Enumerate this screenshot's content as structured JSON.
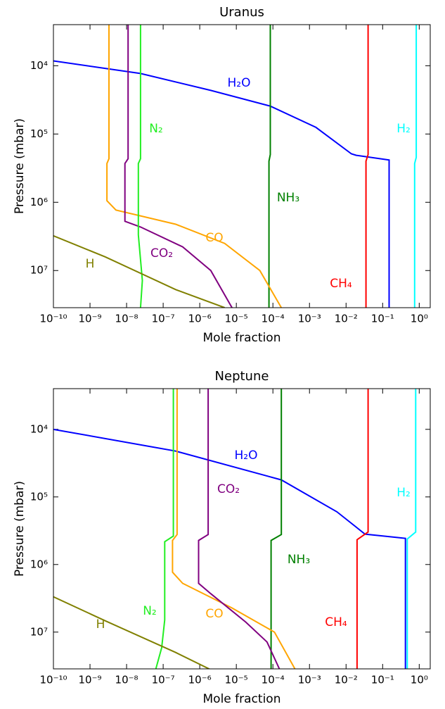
{
  "chart_data": [
    {
      "type": "line",
      "title": "Uranus",
      "xlabel": "Mole fraction",
      "ylabel": "Pressure (mbar)",
      "log_x": true,
      "log_y": true,
      "xlim": [
        1e-10,
        2
      ],
      "ylim": [
        35000000,
        2500
      ],
      "xticks": [
        {
          "value": 1e-10,
          "label": "10⁻¹⁰"
        },
        {
          "value": 1e-09,
          "label": "10⁻⁹"
        },
        {
          "value": 1e-08,
          "label": "10⁻⁸"
        },
        {
          "value": 1e-07,
          "label": "10⁻⁷"
        },
        {
          "value": 1e-06,
          "label": "10⁻⁶"
        },
        {
          "value": 1e-05,
          "label": "10⁻⁵"
        },
        {
          "value": 0.0001,
          "label": "10⁻⁴"
        },
        {
          "value": 0.001,
          "label": "10⁻³"
        },
        {
          "value": 0.01,
          "label": "10⁻²"
        },
        {
          "value": 0.1,
          "label": "10⁻¹"
        },
        {
          "value": 1,
          "label": "10⁰"
        }
      ],
      "yticks": [
        {
          "value": 10000,
          "label": "10⁴"
        },
        {
          "value": 100000,
          "label": "10⁵"
        },
        {
          "value": 1000000,
          "label": "10⁶"
        },
        {
          "value": 10000000,
          "label": "10⁷"
        }
      ],
      "series": [
        {
          "name": "H₂O",
          "color": "#0000ff",
          "x": [
            1e-10,
            2.4e-08,
            2e-06,
            8.5e-05,
            0.0015,
            0.014,
            0.019,
            0.15,
            0.15
          ],
          "values": [
            8500,
            13000,
            23000,
            39000,
            80000,
            195000,
            205000,
            240000,
            35000000
          ]
        },
        {
          "name": "CH₄",
          "color": "#ff0000",
          "x": [
            0.04,
            0.04,
            0.035,
            0.035
          ],
          "values": [
            2500,
            200000,
            250000,
            35000000
          ]
        },
        {
          "name": "H₂",
          "color": "#00ffff",
          "x": [
            0.83,
            0.83,
            0.75,
            0.75
          ],
          "values": [
            2500,
            220000,
            270000,
            35000000
          ]
        },
        {
          "name": "NH₃",
          "color": "#008000",
          "x": [
            8.5e-05,
            8.5e-05,
            7.8e-05,
            7.8e-05
          ],
          "values": [
            2500,
            200000,
            250000,
            35000000
          ]
        },
        {
          "name": "CO",
          "color": "#ffa500",
          "x": [
            3.3e-09,
            3.3e-09,
            2.9e-09,
            2.9e-09,
            5.1e-09,
            2.2e-07,
            4.8e-06,
            4.4e-05,
            0.00017
          ],
          "values": [
            2500,
            230000,
            270000,
            950000,
            1300000,
            2100000,
            4000000,
            10000000,
            35000000
          ]
        },
        {
          "name": "CO₂",
          "color": "#800080",
          "x": [
            1.1e-08,
            1.1e-08,
            9e-09,
            9e-09,
            2.4e-08,
            3.4e-07,
            2e-06,
            7.6e-06
          ],
          "values": [
            2500,
            230000,
            270000,
            1900000,
            2300000,
            4500000,
            10000000,
            35000000
          ]
        },
        {
          "name": "N₂",
          "color": "#22ee22",
          "x": [
            2.4e-08,
            2.4e-08,
            2.1e-08,
            2.1e-08,
            2.7e-08,
            2.4e-08
          ],
          "values": [
            2500,
            230000,
            270000,
            3000000,
            14000000,
            35000000
          ]
        },
        {
          "name": "H",
          "color": "#808000",
          "x": [
            1e-10,
            2.6e-09,
            2.2e-07,
            4.8e-06
          ],
          "values": [
            3100000,
            6300000,
            19000000,
            35000000
          ]
        }
      ]
    },
    {
      "type": "line",
      "title": "Neptune",
      "xlabel": "Mole fraction",
      "ylabel": "Pressure (mbar)",
      "log_x": true,
      "log_y": true,
      "xlim": [
        1e-10,
        2
      ],
      "ylim": [
        35000000,
        2500
      ],
      "xticks": [
        {
          "value": 1e-10,
          "label": "10⁻¹⁰"
        },
        {
          "value": 1e-09,
          "label": "10⁻⁹"
        },
        {
          "value": 1e-08,
          "label": "10⁻⁸"
        },
        {
          "value": 1e-07,
          "label": "10⁻⁷"
        },
        {
          "value": 1e-06,
          "label": "10⁻⁶"
        },
        {
          "value": 1e-05,
          "label": "10⁻⁵"
        },
        {
          "value": 0.0001,
          "label": "10⁻⁴"
        },
        {
          "value": 0.001,
          "label": "10⁻³"
        },
        {
          "value": 0.01,
          "label": "10⁻²"
        },
        {
          "value": 0.1,
          "label": "10⁻¹"
        },
        {
          "value": 1,
          "label": "10⁰"
        }
      ],
      "yticks": [
        {
          "value": 10000,
          "label": "10⁴"
        },
        {
          "value": 100000,
          "label": "10⁵"
        },
        {
          "value": 1000000,
          "label": "10⁶"
        },
        {
          "value": 10000000,
          "label": "10⁷"
        }
      ],
      "series": [
        {
          "name": "H₂O",
          "color": "#0000ff",
          "x": [
            1e-10,
            2.2e-07,
            0.00017,
            0.0056,
            0.033,
            0.42,
            0.42
          ],
          "values": [
            10000,
            21000,
            56000,
            166000,
            355000,
            410000,
            35000000
          ]
        },
        {
          "name": "CH₄",
          "color": "#ff0000",
          "x": [
            0.04,
            0.04,
            0.02,
            0.02
          ],
          "values": [
            2500,
            330000,
            430000,
            35000000
          ]
        },
        {
          "name": "H₂",
          "color": "#00ffff",
          "x": [
            0.8,
            0.8,
            0.47,
            0.47
          ],
          "values": [
            2500,
            330000,
            420000,
            35000000
          ]
        },
        {
          "name": "NH₃",
          "color": "#008000",
          "x": [
            0.00017,
            0.00017,
            8.9e-05,
            8.9e-05
          ],
          "values": [
            2500,
            360000,
            440000,
            35000000
          ]
        },
        {
          "name": "CO",
          "color": "#ffa500",
          "x": [
            2.4e-07,
            2.4e-07,
            1.8e-07,
            1.8e-07,
            3.4e-07,
            7.6e-06,
            0.00011,
            0.0004
          ],
          "values": [
            2500,
            360000,
            440000,
            1300000,
            1900000,
            4400000,
            10000000,
            35000000
          ]
        },
        {
          "name": "CO₂",
          "color": "#800080",
          "x": [
            1.7e-06,
            1.7e-06,
            9.3e-07,
            9.3e-07,
            2e-06,
            1.8e-05,
            6.9e-05,
            0.00015
          ],
          "values": [
            2500,
            360000,
            440000,
            1900000,
            2700000,
            7100000,
            14000000,
            35000000
          ]
        },
        {
          "name": "N₂",
          "color": "#22ee22",
          "x": [
            1.9e-07,
            1.9e-07,
            1.1e-07,
            1.1e-07,
            9.1e-08,
            6.3e-08
          ],
          "values": [
            2500,
            380000,
            460000,
            6600000,
            17000000,
            35000000
          ]
        },
        {
          "name": "H",
          "color": "#808000",
          "x": [
            1e-10,
            2.6e-09,
            2.2e-07,
            2e-06
          ],
          "values": [
            3000000,
            6800000,
            20000000,
            36000000
          ]
        }
      ]
    }
  ]
}
